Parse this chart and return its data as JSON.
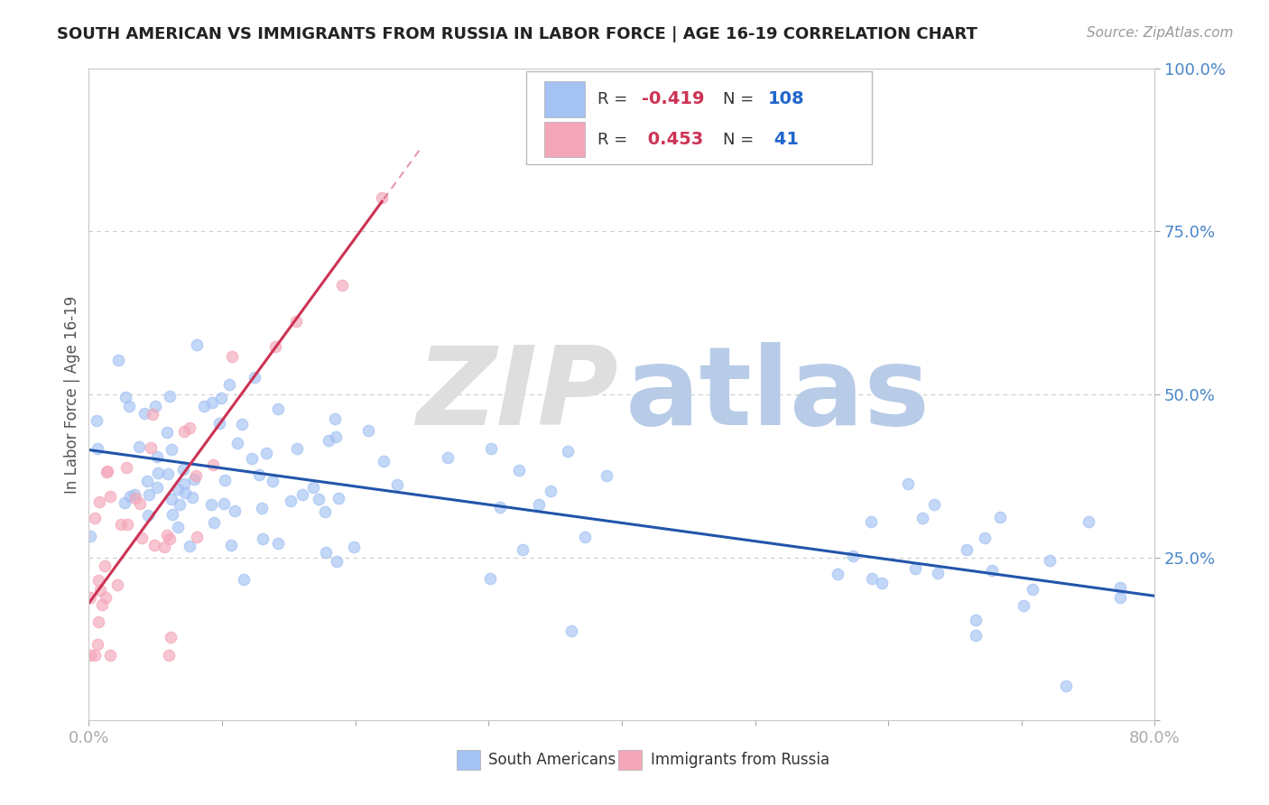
{
  "title": "SOUTH AMERICAN VS IMMIGRANTS FROM RUSSIA IN LABOR FORCE | AGE 16-19 CORRELATION CHART",
  "source": "Source: ZipAtlas.com",
  "ylabel": "In Labor Force | Age 16-19",
  "xlim": [
    0.0,
    0.8
  ],
  "ylim": [
    0.0,
    1.0
  ],
  "blue_r": -0.419,
  "blue_n": 108,
  "pink_r": 0.453,
  "pink_n": 41,
  "blue_color": "#a4c2f4",
  "pink_color": "#f4a7b9",
  "blue_line_color": "#2255aa",
  "pink_line_color": "#cc3355",
  "r_value_color": "#cc3355",
  "n_value_color": "#2266cc",
  "axis_color": "#4a86c8",
  "title_color": "#222222",
  "source_color": "#999999",
  "legend_label_blue": "South Americans",
  "legend_label_pink": "Immigrants from Russia",
  "blue_intercept": 0.415,
  "blue_slope": -0.28,
  "pink_intercept": 0.18,
  "pink_slope": 2.8
}
